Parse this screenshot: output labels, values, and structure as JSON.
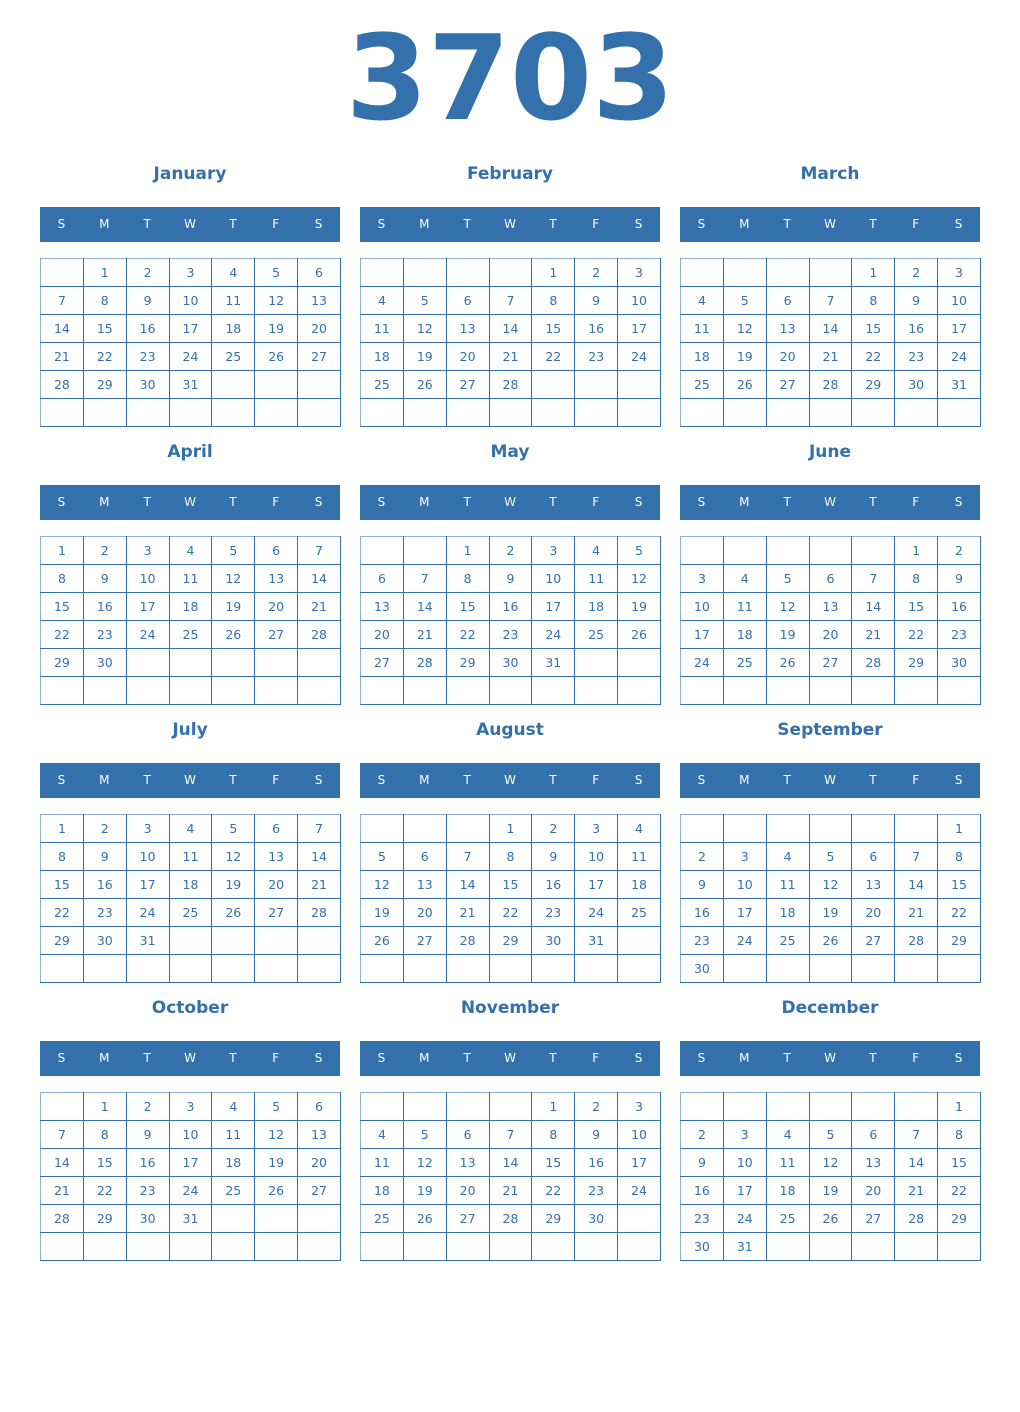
{
  "year": "3703",
  "weekdays": [
    "S",
    "M",
    "T",
    "W",
    "T",
    "F",
    "S"
  ],
  "colors": {
    "accent": "#3470ab",
    "background": "#ffffff"
  },
  "months": [
    {
      "name": "January",
      "weeks": [
        [
          "",
          "1",
          "2",
          "3",
          "4",
          "5",
          "6"
        ],
        [
          "7",
          "8",
          "9",
          "10",
          "11",
          "12",
          "13"
        ],
        [
          "14",
          "15",
          "16",
          "17",
          "18",
          "19",
          "20"
        ],
        [
          "21",
          "22",
          "23",
          "24",
          "25",
          "26",
          "27"
        ],
        [
          "28",
          "29",
          "30",
          "31",
          "",
          "",
          ""
        ],
        [
          "",
          "",
          "",
          "",
          "",
          "",
          ""
        ]
      ]
    },
    {
      "name": "February",
      "weeks": [
        [
          "",
          "",
          "",
          "",
          "1",
          "2",
          "3"
        ],
        [
          "4",
          "5",
          "6",
          "7",
          "8",
          "9",
          "10"
        ],
        [
          "11",
          "12",
          "13",
          "14",
          "15",
          "16",
          "17"
        ],
        [
          "18",
          "19",
          "20",
          "21",
          "22",
          "23",
          "24"
        ],
        [
          "25",
          "26",
          "27",
          "28",
          "",
          "",
          ""
        ],
        [
          "",
          "",
          "",
          "",
          "",
          "",
          ""
        ]
      ]
    },
    {
      "name": "March",
      "weeks": [
        [
          "",
          "",
          "",
          "",
          "1",
          "2",
          "3"
        ],
        [
          "4",
          "5",
          "6",
          "7",
          "8",
          "9",
          "10"
        ],
        [
          "11",
          "12",
          "13",
          "14",
          "15",
          "16",
          "17"
        ],
        [
          "18",
          "19",
          "20",
          "21",
          "22",
          "23",
          "24"
        ],
        [
          "25",
          "26",
          "27",
          "28",
          "29",
          "30",
          "31"
        ],
        [
          "",
          "",
          "",
          "",
          "",
          "",
          ""
        ]
      ]
    },
    {
      "name": "April",
      "weeks": [
        [
          "1",
          "2",
          "3",
          "4",
          "5",
          "6",
          "7"
        ],
        [
          "8",
          "9",
          "10",
          "11",
          "12",
          "13",
          "14"
        ],
        [
          "15",
          "16",
          "17",
          "18",
          "19",
          "20",
          "21"
        ],
        [
          "22",
          "23",
          "24",
          "25",
          "26",
          "27",
          "28"
        ],
        [
          "29",
          "30",
          "",
          "",
          "",
          "",
          ""
        ],
        [
          "",
          "",
          "",
          "",
          "",
          "",
          ""
        ]
      ]
    },
    {
      "name": "May",
      "weeks": [
        [
          "",
          "",
          "1",
          "2",
          "3",
          "4",
          "5"
        ],
        [
          "6",
          "7",
          "8",
          "9",
          "10",
          "11",
          "12"
        ],
        [
          "13",
          "14",
          "15",
          "16",
          "17",
          "18",
          "19"
        ],
        [
          "20",
          "21",
          "22",
          "23",
          "24",
          "25",
          "26"
        ],
        [
          "27",
          "28",
          "29",
          "30",
          "31",
          "",
          ""
        ],
        [
          "",
          "",
          "",
          "",
          "",
          "",
          ""
        ]
      ]
    },
    {
      "name": "June",
      "weeks": [
        [
          "",
          "",
          "",
          "",
          "",
          "1",
          "2"
        ],
        [
          "3",
          "4",
          "5",
          "6",
          "7",
          "8",
          "9"
        ],
        [
          "10",
          "11",
          "12",
          "13",
          "14",
          "15",
          "16"
        ],
        [
          "17",
          "18",
          "19",
          "20",
          "21",
          "22",
          "23"
        ],
        [
          "24",
          "25",
          "26",
          "27",
          "28",
          "29",
          "30"
        ],
        [
          "",
          "",
          "",
          "",
          "",
          "",
          ""
        ]
      ]
    },
    {
      "name": "July",
      "weeks": [
        [
          "1",
          "2",
          "3",
          "4",
          "5",
          "6",
          "7"
        ],
        [
          "8",
          "9",
          "10",
          "11",
          "12",
          "13",
          "14"
        ],
        [
          "15",
          "16",
          "17",
          "18",
          "19",
          "20",
          "21"
        ],
        [
          "22",
          "23",
          "24",
          "25",
          "26",
          "27",
          "28"
        ],
        [
          "29",
          "30",
          "31",
          "",
          "",
          "",
          ""
        ],
        [
          "",
          "",
          "",
          "",
          "",
          "",
          ""
        ]
      ]
    },
    {
      "name": "August",
      "weeks": [
        [
          "",
          "",
          "",
          "1",
          "2",
          "3",
          "4"
        ],
        [
          "5",
          "6",
          "7",
          "8",
          "9",
          "10",
          "11"
        ],
        [
          "12",
          "13",
          "14",
          "15",
          "16",
          "17",
          "18"
        ],
        [
          "19",
          "20",
          "21",
          "22",
          "23",
          "24",
          "25"
        ],
        [
          "26",
          "27",
          "28",
          "29",
          "30",
          "31",
          ""
        ],
        [
          "",
          "",
          "",
          "",
          "",
          "",
          ""
        ]
      ]
    },
    {
      "name": "September",
      "weeks": [
        [
          "",
          "",
          "",
          "",
          "",
          "",
          "1"
        ],
        [
          "2",
          "3",
          "4",
          "5",
          "6",
          "7",
          "8"
        ],
        [
          "9",
          "10",
          "11",
          "12",
          "13",
          "14",
          "15"
        ],
        [
          "16",
          "17",
          "18",
          "19",
          "20",
          "21",
          "22"
        ],
        [
          "23",
          "24",
          "25",
          "26",
          "27",
          "28",
          "29"
        ],
        [
          "30",
          "",
          "",
          "",
          "",
          "",
          ""
        ]
      ]
    },
    {
      "name": "October",
      "weeks": [
        [
          "",
          "1",
          "2",
          "3",
          "4",
          "5",
          "6"
        ],
        [
          "7",
          "8",
          "9",
          "10",
          "11",
          "12",
          "13"
        ],
        [
          "14",
          "15",
          "16",
          "17",
          "18",
          "19",
          "20"
        ],
        [
          "21",
          "22",
          "23",
          "24",
          "25",
          "26",
          "27"
        ],
        [
          "28",
          "29",
          "30",
          "31",
          "",
          "",
          ""
        ],
        [
          "",
          "",
          "",
          "",
          "",
          "",
          ""
        ]
      ]
    },
    {
      "name": "November",
      "weeks": [
        [
          "",
          "",
          "",
          "",
          "1",
          "2",
          "3"
        ],
        [
          "4",
          "5",
          "6",
          "7",
          "8",
          "9",
          "10"
        ],
        [
          "11",
          "12",
          "13",
          "14",
          "15",
          "16",
          "17"
        ],
        [
          "18",
          "19",
          "20",
          "21",
          "22",
          "23",
          "24"
        ],
        [
          "25",
          "26",
          "27",
          "28",
          "29",
          "30",
          ""
        ],
        [
          "",
          "",
          "",
          "",
          "",
          "",
          ""
        ]
      ]
    },
    {
      "name": "December",
      "weeks": [
        [
          "",
          "",
          "",
          "",
          "",
          "",
          "1"
        ],
        [
          "2",
          "3",
          "4",
          "5",
          "6",
          "7",
          "8"
        ],
        [
          "9",
          "10",
          "11",
          "12",
          "13",
          "14",
          "15"
        ],
        [
          "16",
          "17",
          "18",
          "19",
          "20",
          "21",
          "22"
        ],
        [
          "23",
          "24",
          "25",
          "26",
          "27",
          "28",
          "29"
        ],
        [
          "30",
          "31",
          "",
          "",
          "",
          "",
          ""
        ]
      ]
    }
  ]
}
